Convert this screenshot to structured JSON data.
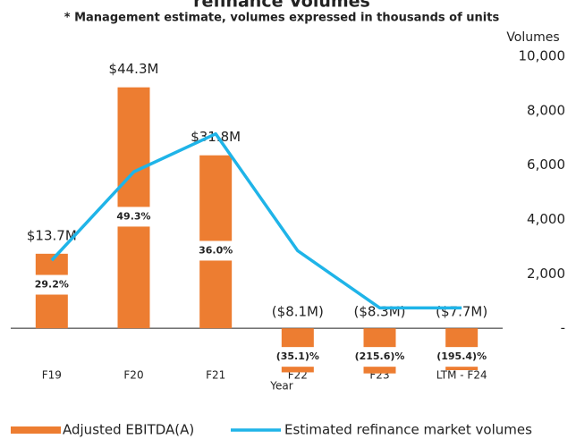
{
  "chart_data": {
    "type": "bar",
    "title": "refinance Volumes",
    "subtitle": "* Management estimate, volumes expressed in thousands of units",
    "x_label": "Year",
    "y2_label": "Volumes",
    "categories": [
      "F19",
      "F20",
      "F21",
      "F22",
      "F23",
      "LTM - F24"
    ],
    "ylim": [
      -10,
      50
    ],
    "y2lim": [
      -2000,
      10000
    ],
    "y2ticks": [
      {
        "value": 0,
        "label": "-"
      },
      {
        "value": 2000,
        "label": "2,000"
      },
      {
        "value": 4000,
        "label": "4,000"
      },
      {
        "value": 6000,
        "label": "6,000"
      },
      {
        "value": 8000,
        "label": "8,000"
      },
      {
        "value": 10000,
        "label": "10,000"
      }
    ],
    "series": [
      {
        "name": "Adjusted EBITDA(A)",
        "color": "#ed7d31",
        "values": [
          13.7,
          44.3,
          31.8,
          -8.1,
          -8.3,
          -7.7
        ],
        "value_labels": [
          "$13.7M",
          "$44.3M",
          "$31.8M",
          "($8.1M)",
          "($8.3M)",
          "($7.7M)"
        ],
        "margin_labels": [
          "29.2%",
          "49.3%",
          "36.0%",
          "(35.1)%",
          "(215.6)%",
          "(195.4)%"
        ]
      },
      {
        "name": "Estimated refinance market volumes",
        "color": "#1fb4e8",
        "axis": "y2",
        "type": "line",
        "values": [
          2500,
          5750,
          7150,
          2850,
          750,
          750
        ]
      }
    ]
  }
}
